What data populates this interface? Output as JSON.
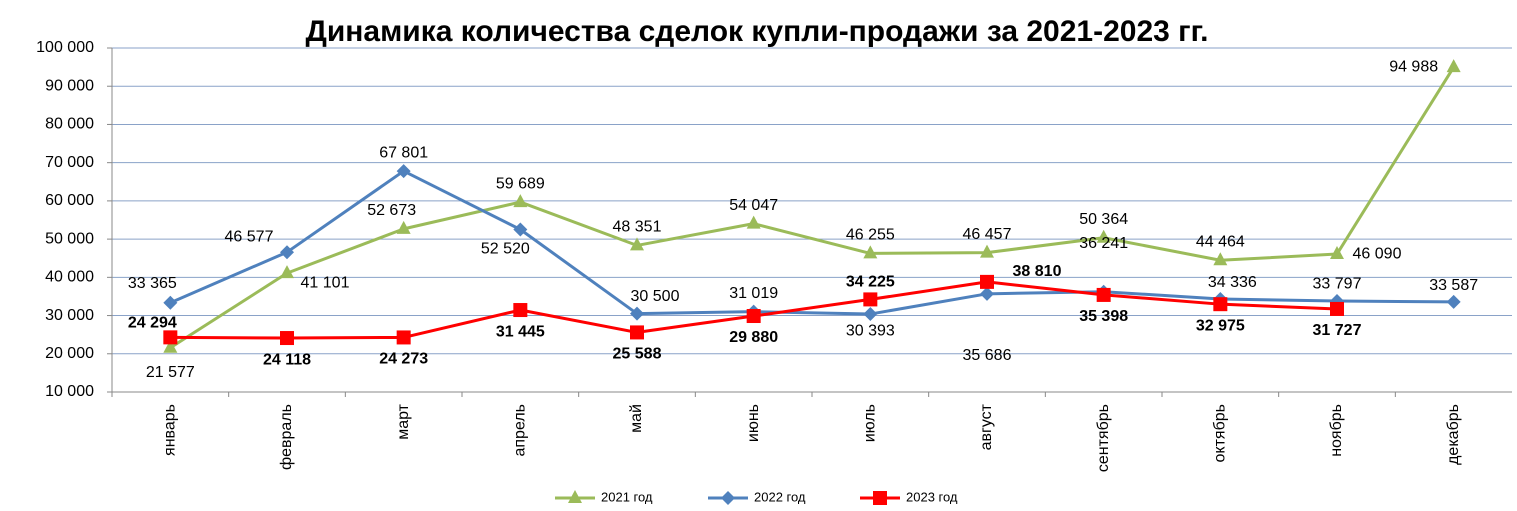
{
  "chart_data": {
    "type": "line",
    "title": "Динамика количества сделок купли-продажи за 2021-2023 гг.",
    "categories": [
      "январь",
      "февраль",
      "март",
      "апрель",
      "май",
      "июнь",
      "июль",
      "август",
      "сентябрь",
      "октябрь",
      "ноябрь",
      "декабрь"
    ],
    "series": [
      {
        "name": "2021 год",
        "color": "#9bbb59",
        "values": [
          21577,
          41101,
          52673,
          59689,
          48351,
          54047,
          46255,
          46457,
          50364,
          44464,
          46090,
          94988
        ],
        "value_labels": [
          "21 577",
          "41 101",
          "52 673",
          "59 689",
          "48 351",
          "54 047",
          "46 255",
          "46 457",
          "50 364",
          "44 464",
          "46 090",
          "94 988"
        ]
      },
      {
        "name": "2022 год",
        "color": "#4f81bd",
        "values": [
          33365,
          46577,
          67801,
          52520,
          30500,
          31019,
          30393,
          35686,
          36241,
          34336,
          33797,
          33587
        ],
        "value_labels": [
          "33 365",
          "46 577",
          "67 801",
          "52 520",
          "30 500",
          "31 019",
          "30 393",
          "35 686",
          "36 241",
          "34 336",
          "33 797",
          "33 587"
        ]
      },
      {
        "name": "2023 год",
        "color": "#ff0000",
        "values": [
          24294,
          24118,
          24273,
          31445,
          25588,
          29880,
          34225,
          38810,
          35398,
          32975,
          31727,
          null
        ],
        "value_labels": [
          "24 294",
          "24 118",
          "24 273",
          "31 445",
          "25 588",
          "29 880",
          "34 225",
          "38 810",
          "35 398",
          "32 975",
          "31 727",
          null
        ]
      }
    ],
    "ylim": [
      10000,
      100000
    ],
    "yticks": [
      {
        "value": 10000,
        "label": "10 000"
      },
      {
        "value": 20000,
        "label": "20 000"
      },
      {
        "value": 30000,
        "label": "30 000"
      },
      {
        "value": 40000,
        "label": "40 000"
      },
      {
        "value": 50000,
        "label": "50 000"
      },
      {
        "value": 60000,
        "label": "60 000"
      },
      {
        "value": 70000,
        "label": "70 000"
      },
      {
        "value": 80000,
        "label": "80 000"
      },
      {
        "value": 90000,
        "label": "90 000"
      },
      {
        "value": 100000,
        "label": "100 000"
      }
    ],
    "grid": true,
    "legend": "bottom"
  }
}
